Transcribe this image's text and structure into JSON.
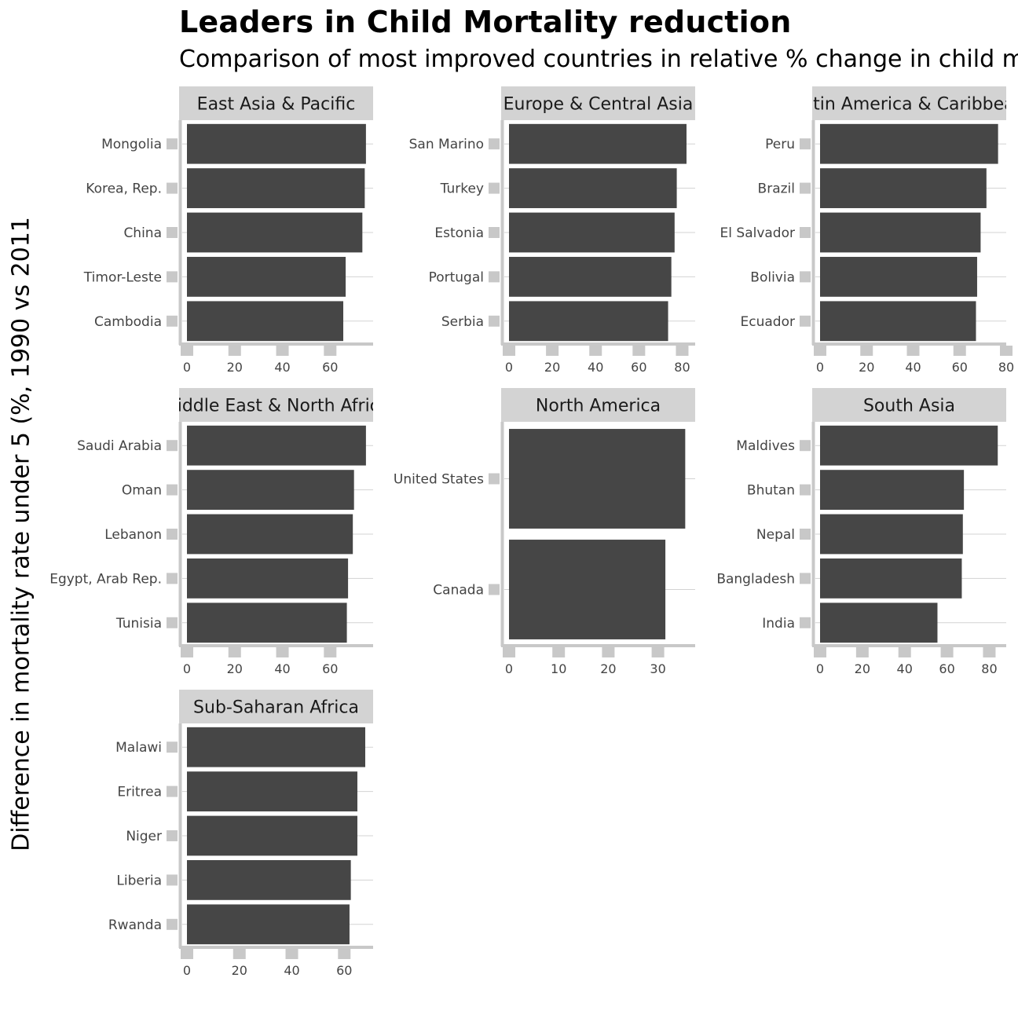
{
  "title": "Leaders in Child Mortality reduction",
  "subtitle": "Comparison of most improved countries in relative % change in child mortality",
  "ylabel": "Difference in mortality rate under 5 (%, 1990 vs 2011",
  "colors": {
    "bar": "#464646",
    "strip": "#d3d3d3",
    "axis": "#c8c8c8",
    "grid": "#d3d3d3"
  },
  "chart_data": {
    "type": "bar",
    "orientation": "horizontal",
    "facets": [
      {
        "name": "East Asia & Pacific",
        "xlim": [
          0,
          78
        ],
        "xticks": [
          0,
          20,
          40,
          60
        ],
        "categories": [
          "Mongolia",
          "Korea, Rep.",
          "China",
          "Timor-Leste",
          "Cambodia"
        ],
        "values": [
          75,
          74.5,
          73.5,
          66.5,
          65.5
        ]
      },
      {
        "name": "Europe & Central Asia",
        "xlim": [
          0,
          86
        ],
        "xticks": [
          0,
          20,
          40,
          60,
          80
        ],
        "categories": [
          "San Marino",
          "Turkey",
          "Estonia",
          "Portugal",
          "Serbia"
        ],
        "values": [
          82,
          77.5,
          76.5,
          75,
          73.5
        ]
      },
      {
        "name": "Latin America & Caribbean",
        "xlim": [
          0,
          80
        ],
        "xticks": [
          0,
          20,
          40,
          60,
          80
        ],
        "categories": [
          "Peru",
          "Brazil",
          "El Salvador",
          "Bolivia",
          "Ecuador"
        ],
        "values": [
          76.5,
          71.5,
          69,
          67.5,
          67
        ]
      },
      {
        "name": "Middle East & North Africa",
        "xlim": [
          0,
          78
        ],
        "xticks": [
          0,
          20,
          40,
          60
        ],
        "categories": [
          "Saudi Arabia",
          "Oman",
          "Lebanon",
          "Egypt, Arab Rep.",
          "Tunisia"
        ],
        "values": [
          75,
          70,
          69.5,
          67.5,
          67
        ]
      },
      {
        "name": "North America",
        "xlim": [
          0,
          37.5
        ],
        "xticks": [
          0,
          10,
          20,
          30
        ],
        "categories": [
          "United States",
          "Canada"
        ],
        "values": [
          35.5,
          31.5
        ]
      },
      {
        "name": "South Asia",
        "xlim": [
          0,
          88
        ],
        "xticks": [
          0,
          20,
          40,
          60,
          80
        ],
        "categories": [
          "Maldives",
          "Bhutan",
          "Nepal",
          "Bangladesh",
          "India"
        ],
        "values": [
          84,
          68,
          67.5,
          67,
          55.5
        ]
      },
      {
        "name": "Sub-Saharan Africa",
        "xlim": [
          0,
          71
        ],
        "xticks": [
          0,
          20,
          40,
          60
        ],
        "categories": [
          "Malawi",
          "Eritrea",
          "Niger",
          "Liberia",
          "Rwanda"
        ],
        "values": [
          68,
          65,
          65,
          62.5,
          62
        ]
      }
    ]
  }
}
